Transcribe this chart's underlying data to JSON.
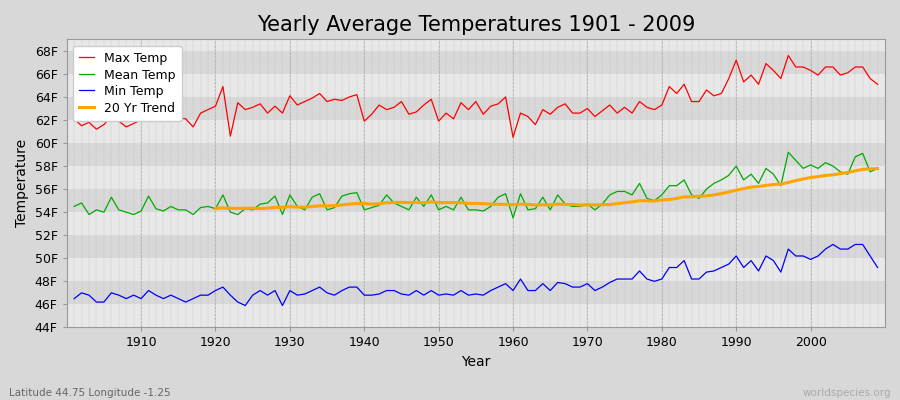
{
  "title": "Yearly Average Temperatures 1901 - 2009",
  "xlabel": "Year",
  "ylabel": "Temperature",
  "bottom_left": "Latitude 44.75 Longitude -1.25",
  "bottom_right": "worldspecies.org",
  "years": [
    1901,
    1902,
    1903,
    1904,
    1905,
    1906,
    1907,
    1908,
    1909,
    1910,
    1911,
    1912,
    1913,
    1914,
    1915,
    1916,
    1917,
    1918,
    1919,
    1920,
    1921,
    1922,
    1923,
    1924,
    1925,
    1926,
    1927,
    1928,
    1929,
    1930,
    1931,
    1932,
    1933,
    1934,
    1935,
    1936,
    1937,
    1938,
    1939,
    1940,
    1941,
    1942,
    1943,
    1944,
    1945,
    1946,
    1947,
    1948,
    1949,
    1950,
    1951,
    1952,
    1953,
    1954,
    1955,
    1956,
    1957,
    1958,
    1959,
    1960,
    1961,
    1962,
    1963,
    1964,
    1965,
    1966,
    1967,
    1968,
    1969,
    1970,
    1971,
    1972,
    1973,
    1974,
    1975,
    1976,
    1977,
    1978,
    1979,
    1980,
    1981,
    1982,
    1983,
    1984,
    1985,
    1986,
    1987,
    1988,
    1989,
    1990,
    1991,
    1992,
    1993,
    1994,
    1995,
    1996,
    1997,
    1998,
    1999,
    2000,
    2001,
    2002,
    2003,
    2004,
    2005,
    2006,
    2007,
    2008,
    2009
  ],
  "max_temp": [
    62.1,
    61.5,
    61.8,
    61.2,
    61.6,
    62.3,
    61.9,
    61.4,
    61.7,
    62.0,
    62.9,
    62.3,
    61.9,
    62.5,
    62.2,
    62.1,
    61.4,
    62.6,
    62.9,
    63.2,
    64.9,
    60.6,
    63.5,
    62.9,
    63.1,
    63.4,
    62.6,
    63.2,
    62.6,
    64.1,
    63.3,
    63.6,
    63.9,
    64.3,
    63.6,
    63.8,
    63.7,
    64.0,
    64.2,
    61.9,
    62.5,
    63.3,
    62.9,
    63.1,
    63.6,
    62.5,
    62.7,
    63.3,
    63.8,
    61.9,
    62.6,
    62.1,
    63.5,
    62.9,
    63.6,
    62.5,
    63.2,
    63.4,
    64.0,
    60.5,
    62.6,
    62.3,
    61.6,
    62.9,
    62.5,
    63.1,
    63.4,
    62.6,
    62.6,
    63.0,
    62.3,
    62.8,
    63.3,
    62.6,
    63.1,
    62.6,
    63.6,
    63.1,
    62.9,
    63.3,
    64.9,
    64.3,
    65.1,
    63.6,
    63.6,
    64.6,
    64.1,
    64.3,
    65.6,
    67.2,
    65.3,
    65.9,
    65.1,
    66.9,
    66.3,
    65.6,
    67.6,
    66.6,
    66.6,
    66.3,
    65.9,
    66.6,
    66.6,
    65.9,
    66.1,
    66.6,
    66.6,
    65.6,
    65.1
  ],
  "mean_temp": [
    54.5,
    54.8,
    53.8,
    54.2,
    54.0,
    55.3,
    54.2,
    54.0,
    53.8,
    54.1,
    55.4,
    54.3,
    54.1,
    54.5,
    54.2,
    54.2,
    53.8,
    54.4,
    54.5,
    54.3,
    55.5,
    54.0,
    53.8,
    54.3,
    54.2,
    54.7,
    54.8,
    55.4,
    53.8,
    55.5,
    54.5,
    54.2,
    55.3,
    55.6,
    54.2,
    54.4,
    55.4,
    55.6,
    55.7,
    54.2,
    54.4,
    54.6,
    55.5,
    54.8,
    54.5,
    54.2,
    55.3,
    54.5,
    55.5,
    54.2,
    54.5,
    54.2,
    55.3,
    54.2,
    54.2,
    54.1,
    54.5,
    55.3,
    55.6,
    53.5,
    55.6,
    54.2,
    54.3,
    55.3,
    54.2,
    55.5,
    54.7,
    54.5,
    54.5,
    54.7,
    54.2,
    54.7,
    55.5,
    55.8,
    55.8,
    55.5,
    56.5,
    55.2,
    55.0,
    55.5,
    56.3,
    56.3,
    56.8,
    55.5,
    55.2,
    56.0,
    56.5,
    56.8,
    57.2,
    58.0,
    56.8,
    57.3,
    56.5,
    57.8,
    57.3,
    56.3,
    59.2,
    58.5,
    57.8,
    58.1,
    57.8,
    58.3,
    58.0,
    57.5,
    57.3,
    58.8,
    59.1,
    57.5,
    57.8
  ],
  "min_temp": [
    46.5,
    47.0,
    46.8,
    46.2,
    46.2,
    47.0,
    46.8,
    46.5,
    46.8,
    46.5,
    47.2,
    46.8,
    46.5,
    46.8,
    46.5,
    46.2,
    46.5,
    46.8,
    46.8,
    47.2,
    47.5,
    46.8,
    46.2,
    45.9,
    46.8,
    47.2,
    46.8,
    47.2,
    45.9,
    47.2,
    46.8,
    46.9,
    47.2,
    47.5,
    47.0,
    46.8,
    47.2,
    47.5,
    47.5,
    46.8,
    46.8,
    46.9,
    47.2,
    47.2,
    46.9,
    46.8,
    47.2,
    46.8,
    47.2,
    46.8,
    46.9,
    46.8,
    47.2,
    46.8,
    46.9,
    46.8,
    47.2,
    47.5,
    47.8,
    47.2,
    48.2,
    47.2,
    47.2,
    47.8,
    47.2,
    47.9,
    47.8,
    47.5,
    47.5,
    47.8,
    47.2,
    47.5,
    47.9,
    48.2,
    48.2,
    48.2,
    48.9,
    48.2,
    48.0,
    48.2,
    49.2,
    49.2,
    49.8,
    48.2,
    48.2,
    48.8,
    48.9,
    49.2,
    49.5,
    50.2,
    49.2,
    49.8,
    48.9,
    50.2,
    49.8,
    48.8,
    50.8,
    50.2,
    50.2,
    49.9,
    50.2,
    50.8,
    51.2,
    50.8,
    50.8,
    51.2,
    51.2,
    50.2,
    49.2
  ],
  "bg_color": "#d8d8d8",
  "plot_bg_light": "#e8e8e8",
  "plot_bg_dark": "#d8d8d8",
  "max_color": "#ff0000",
  "mean_color": "#00aa00",
  "min_color": "#0000ff",
  "trend_color": "#ffa500",
  "grid_color": "#cccccc",
  "ylim": [
    44,
    69
  ],
  "yticks": [
    44,
    46,
    48,
    50,
    52,
    54,
    56,
    58,
    60,
    62,
    64,
    66,
    68
  ],
  "xticks": [
    1910,
    1920,
    1930,
    1940,
    1950,
    1960,
    1970,
    1980,
    1990,
    2000
  ],
  "title_fontsize": 15,
  "axis_label_fontsize": 10,
  "tick_fontsize": 9,
  "legend_fontsize": 9
}
